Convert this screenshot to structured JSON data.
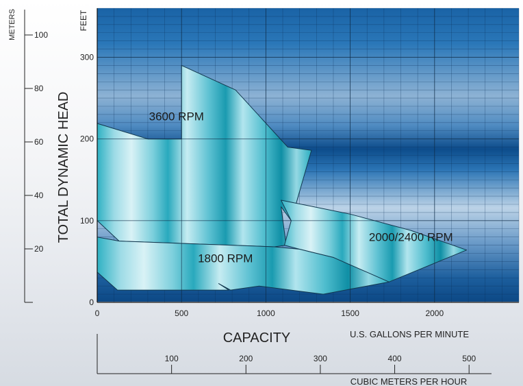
{
  "chart_data": {
    "type": "area",
    "x_axis": {
      "label": "CAPACITY",
      "units_label": "U.S. GALLONS PER MINUTE",
      "range": [
        0,
        2500
      ],
      "ticks": [
        0,
        500,
        1000,
        1500,
        2000
      ]
    },
    "x_axis_secondary": {
      "label": "CUBIC METERS PER HOUR",
      "range": [
        0,
        567
      ],
      "ticks": [
        100,
        200,
        300,
        400,
        500
      ]
    },
    "y_axis": {
      "label": "FEET",
      "range": [
        0,
        360
      ],
      "ticks": [
        0,
        100,
        200,
        300
      ]
    },
    "y_axis_secondary": {
      "label": "METERS",
      "title": "TOTAL DYNAMIC HEAD",
      "range": [
        0,
        110
      ],
      "ticks": [
        20,
        40,
        60,
        80,
        100
      ]
    },
    "grid": true,
    "series": [
      {
        "name": "3600 RPM",
        "label_at": [
          470,
          223
        ],
        "points": [
          [
            0,
            219
          ],
          [
            110,
            212
          ],
          [
            300,
            200
          ],
          [
            500,
            200
          ],
          [
            500,
            290
          ],
          [
            820,
            260
          ],
          [
            1130,
            190
          ],
          [
            1270,
            186
          ],
          [
            1150,
            100
          ],
          [
            1090,
            117
          ],
          [
            1120,
            70
          ],
          [
            1050,
            68
          ],
          [
            130,
            75
          ],
          [
            0,
            100
          ]
        ]
      },
      {
        "name": "2000/2400 RPM",
        "label_at": [
          1860,
          75
        ],
        "points": [
          [
            1090,
            125
          ],
          [
            1500,
            108
          ],
          [
            1860,
            88
          ],
          [
            2190,
            64
          ],
          [
            1730,
            25
          ],
          [
            1600,
            30
          ],
          [
            1400,
            55
          ],
          [
            1200,
            65
          ],
          [
            1110,
            70
          ],
          [
            1150,
            100
          ]
        ]
      },
      {
        "name": "1800 RPM",
        "label_at": [
          760,
          49
        ],
        "points": [
          [
            0,
            80
          ],
          [
            130,
            75
          ],
          [
            1050,
            68
          ],
          [
            1200,
            65
          ],
          [
            1400,
            55
          ],
          [
            1730,
            25
          ],
          [
            1340,
            10
          ],
          [
            960,
            20
          ],
          [
            790,
            15
          ],
          [
            720,
            23
          ],
          [
            780,
            15
          ],
          [
            120,
            15
          ],
          [
            0,
            37
          ]
        ]
      }
    ],
    "colors": {
      "envelope_fill": "#33b4c4",
      "background_dark": "#0e4f8c",
      "background_light": "#a9c6df"
    }
  }
}
